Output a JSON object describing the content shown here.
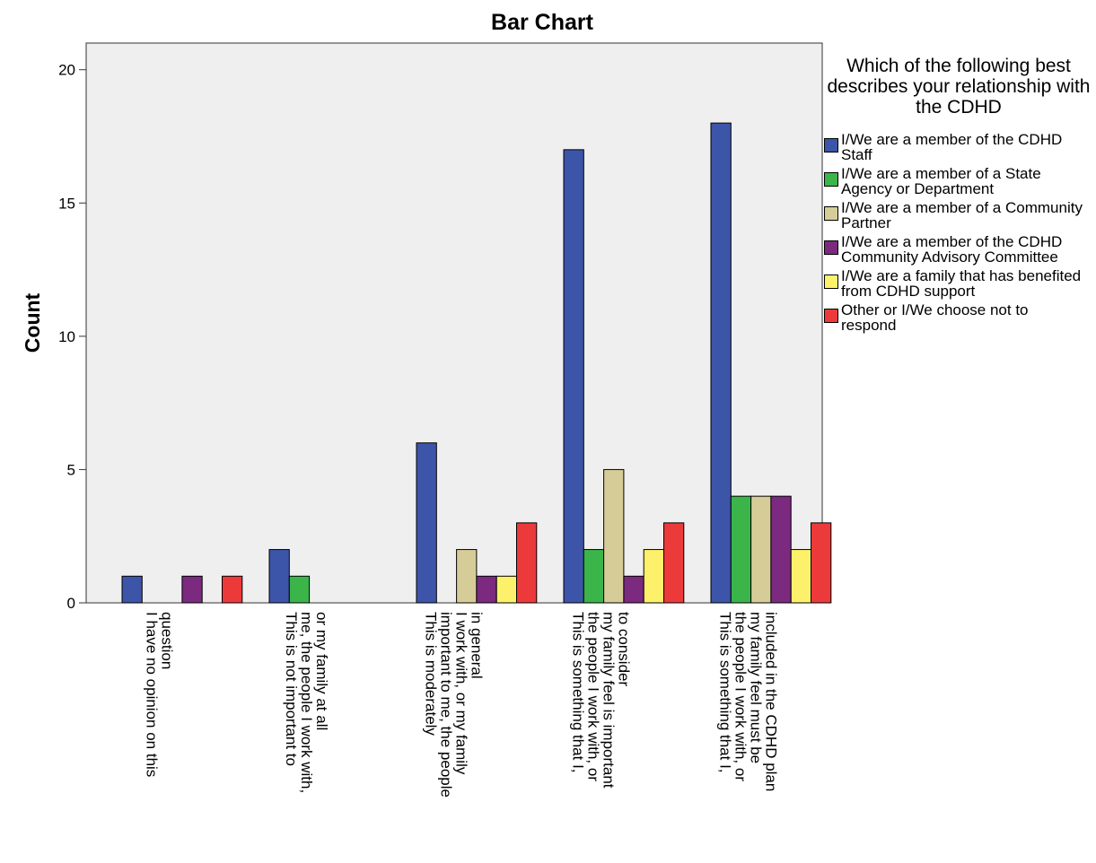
{
  "chart_data": {
    "type": "bar",
    "title": "Bar Chart",
    "xlabel": "",
    "ylabel": "Count",
    "ylim": [
      0,
      21
    ],
    "yticks": [
      0,
      5,
      10,
      15,
      20
    ],
    "grid": false,
    "legend_position": "right",
    "legend_title": "Which of the following best describes your relationship with the CDHD",
    "categories": [
      "I have no opinion on this question",
      "This is not important to me, the people I work with, or my family at all",
      "This is moderately important to me, the people I work with, or my family in general",
      "This is something that I, the people I work with, or my family feel is important to consider",
      "This is something that I, the people I work with, or my family feel must be included in the CDHD plan"
    ],
    "series": [
      {
        "name": "I/We are a member of the CDHD Staff",
        "color": "#3d55a8",
        "values": [
          1,
          2,
          6,
          17,
          18
        ]
      },
      {
        "name": "I/We are a member of a State Agency or Department",
        "color": "#3bb54a",
        "values": [
          0,
          1,
          0,
          2,
          4
        ]
      },
      {
        "name": "I/We are a member of a Community Partner",
        "color": "#d6cc98",
        "values": [
          0,
          0,
          2,
          5,
          4
        ]
      },
      {
        "name": "I/We are a member of the CDHD Community Advisory Committee",
        "color": "#7b2a80",
        "values": [
          1,
          0,
          1,
          1,
          4
        ]
      },
      {
        "name": "I/We are a family that has benefited from CDHD support",
        "color": "#fdf16b",
        "values": [
          0,
          0,
          1,
          2,
          2
        ]
      },
      {
        "name": "Other or I/We choose not to respond",
        "color": "#ec3a3a",
        "values": [
          1,
          0,
          3,
          3,
          3
        ]
      }
    ],
    "plot_background": "#efefef"
  }
}
